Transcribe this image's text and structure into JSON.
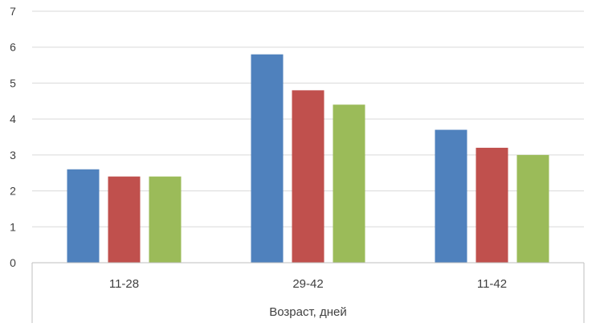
{
  "chart_data": {
    "type": "bar",
    "categories": [
      "11-28",
      "29-42",
      "11-42"
    ],
    "series": [
      {
        "values": [
          2.6,
          5.8,
          3.7
        ],
        "color": "#4F81BD"
      },
      {
        "values": [
          2.4,
          4.8,
          3.2
        ],
        "color": "#C0504D"
      },
      {
        "values": [
          2.4,
          4.4,
          3.0
        ],
        "color": "#9BBB59"
      }
    ],
    "xlabel": "Возраст, дней",
    "ylabel": "",
    "ylim": [
      0,
      7
    ],
    "yticks": [
      0,
      1,
      2,
      3,
      4,
      5,
      6,
      7
    ],
    "grid": true,
    "gridline_color": "#D9D9D9",
    "axis_color": "#BFBFBF"
  }
}
